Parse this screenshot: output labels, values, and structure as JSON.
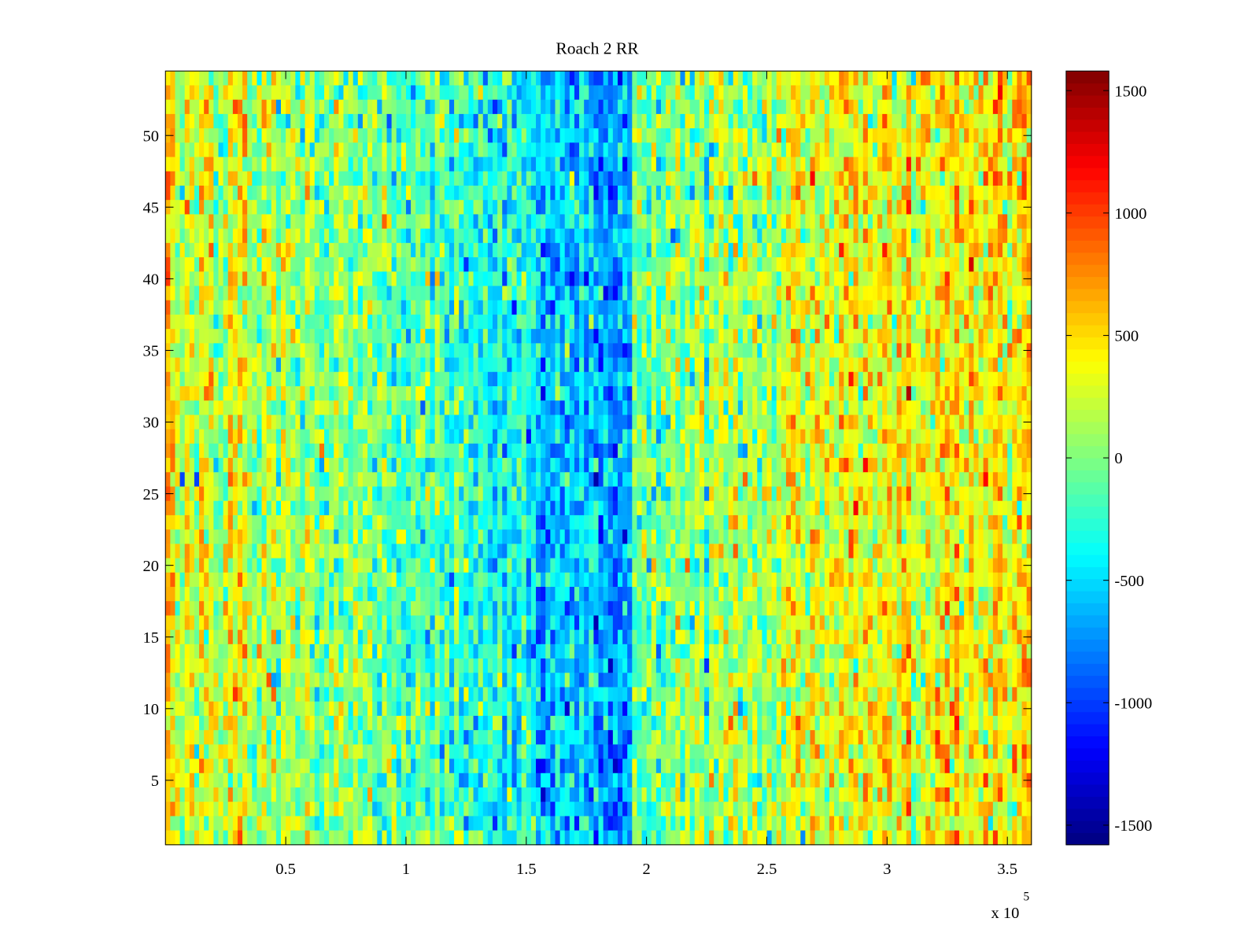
{
  "chart_data": {
    "type": "heatmap",
    "title": "Roach 2 RR",
    "xlabel": "",
    "ylabel": "",
    "x_exponent_label": "x 10",
    "x_exponent": "5",
    "xlim": [
      0,
      360000
    ],
    "ylim": [
      0.5,
      54.5
    ],
    "rows": 54,
    "clim": [
      -1580,
      1580
    ],
    "colormap": "jet",
    "xticks": [
      50000,
      100000,
      150000,
      200000,
      250000,
      300000,
      350000
    ],
    "xtick_labels": [
      "0.5",
      "1",
      "1.5",
      "2",
      "2.5",
      "3",
      "3.5"
    ],
    "yticks": [
      5,
      10,
      15,
      20,
      25,
      30,
      35,
      40,
      45,
      50
    ],
    "ytick_labels": [
      "5",
      "10",
      "15",
      "20",
      "25",
      "30",
      "35",
      "40",
      "45",
      "50"
    ],
    "colorbar_ticks": [
      -1500,
      -1000,
      -500,
      0,
      500,
      1000,
      1500
    ],
    "colorbar_tick_labels": [
      "-1500",
      "-1000",
      "-500",
      "0",
      "500",
      "1000",
      "1500"
    ],
    "column_mean_profile": {
      "x": [
        0,
        25000,
        50000,
        75000,
        100000,
        125000,
        150000,
        160000,
        175000,
        193000,
        195000,
        220000,
        250000,
        270000,
        300000,
        330000,
        360000
      ],
      "value": [
        300,
        250,
        100,
        0,
        -150,
        -250,
        -400,
        -550,
        -650,
        -700,
        -100,
        0,
        150,
        350,
        350,
        350,
        400
      ]
    },
    "noise_std": 260
  }
}
